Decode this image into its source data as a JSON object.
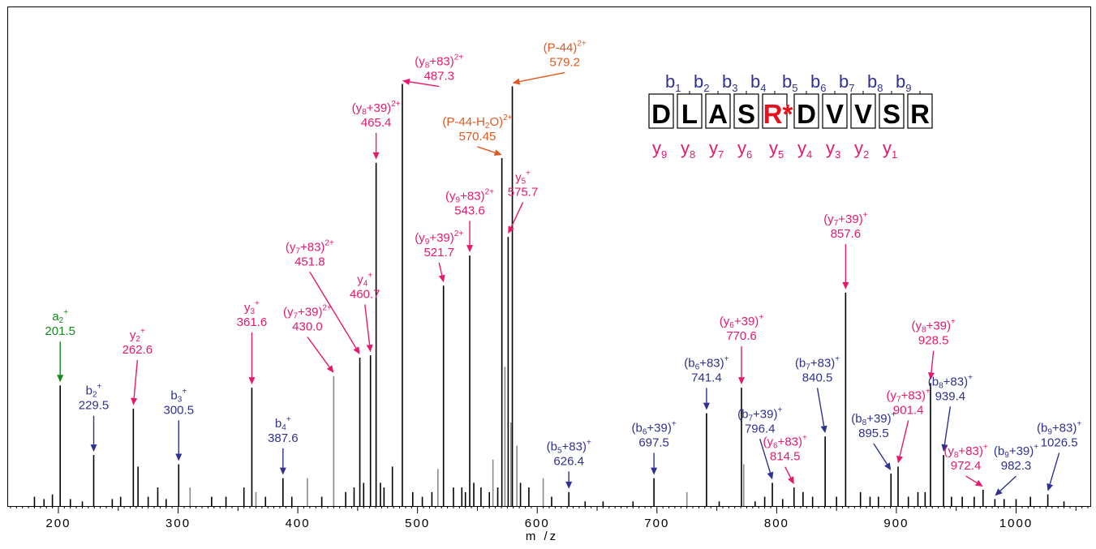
{
  "chart_data": {
    "type": "bar",
    "xlabel": "m /z",
    "xlim": [
      158,
      1062
    ],
    "x_ticks": [
      200,
      300,
      400,
      500,
      600,
      700,
      800,
      900,
      1000
    ],
    "ylim": [
      0,
      100
    ],
    "colors": {
      "y_ion": "#e8186d",
      "b_ion": "#2e3192",
      "a_ion": "#138a1a",
      "precursor": "#e2571d",
      "peak": "#000000",
      "peak_gray": "#8a8a8a"
    },
    "peaks": [
      {
        "x": 201.5,
        "y": 26
      },
      {
        "x": 229.5,
        "y": 11
      },
      {
        "x": 262.6,
        "y": 21
      },
      {
        "x": 266.5,
        "y": 8.5
      },
      {
        "x": 300.5,
        "y": 9
      },
      {
        "x": 361.6,
        "y": 25.5
      },
      {
        "x": 387.6,
        "y": 6
      },
      {
        "x": 430.0,
        "y": 28,
        "gray": true
      },
      {
        "x": 451.8,
        "y": 32
      },
      {
        "x": 460.7,
        "y": 32.5
      },
      {
        "x": 465.4,
        "y": 74
      },
      {
        "x": 479.0,
        "y": 8.5
      },
      {
        "x": 487.3,
        "y": 91
      },
      {
        "x": 521.7,
        "y": 47.5
      },
      {
        "x": 543.6,
        "y": 54
      },
      {
        "x": 570.45,
        "y": 75
      },
      {
        "x": 575.7,
        "y": 58
      },
      {
        "x": 578.0,
        "y": 18,
        "gray": true
      },
      {
        "x": 579.2,
        "y": 90.5
      },
      {
        "x": 626.4,
        "y": 3
      },
      {
        "x": 697.5,
        "y": 6
      },
      {
        "x": 741.4,
        "y": 20
      },
      {
        "x": 770.6,
        "y": 25.5
      },
      {
        "x": 772.5,
        "y": 9,
        "gray": true
      },
      {
        "x": 796.4,
        "y": 5
      },
      {
        "x": 814.5,
        "y": 4
      },
      {
        "x": 840.5,
        "y": 15
      },
      {
        "x": 857.6,
        "y": 46
      },
      {
        "x": 895.5,
        "y": 7
      },
      {
        "x": 901.4,
        "y": 8.5
      },
      {
        "x": 928.5,
        "y": 26.5
      },
      {
        "x": 939.4,
        "y": 11
      },
      {
        "x": 972.4,
        "y": 3.5
      },
      {
        "x": 982.3,
        "y": 1.5
      },
      {
        "x": 1026.5,
        "y": 2.5
      },
      {
        "x": 180,
        "y": 2
      },
      {
        "x": 188,
        "y": 1.5
      },
      {
        "x": 195,
        "y": 2.5
      },
      {
        "x": 210,
        "y": 1.5
      },
      {
        "x": 220,
        "y": 1
      },
      {
        "x": 245,
        "y": 1.5
      },
      {
        "x": 252,
        "y": 2
      },
      {
        "x": 275,
        "y": 2
      },
      {
        "x": 283,
        "y": 4
      },
      {
        "x": 290,
        "y": 1.5
      },
      {
        "x": 310,
        "y": 4,
        "gray": true
      },
      {
        "x": 328,
        "y": 2
      },
      {
        "x": 340,
        "y": 2
      },
      {
        "x": 355,
        "y": 4
      },
      {
        "x": 365,
        "y": 3,
        "gray": true
      },
      {
        "x": 373,
        "y": 2
      },
      {
        "x": 395,
        "y": 2
      },
      {
        "x": 408,
        "y": 6,
        "gray": true
      },
      {
        "x": 420,
        "y": 2
      },
      {
        "x": 440,
        "y": 3
      },
      {
        "x": 447,
        "y": 4
      },
      {
        "x": 455,
        "y": 5
      },
      {
        "x": 469,
        "y": 5
      },
      {
        "x": 472,
        "y": 4
      },
      {
        "x": 496,
        "y": 3
      },
      {
        "x": 504,
        "y": 2
      },
      {
        "x": 512,
        "y": 3
      },
      {
        "x": 517,
        "y": 8,
        "gray": true
      },
      {
        "x": 530,
        "y": 4
      },
      {
        "x": 537,
        "y": 4
      },
      {
        "x": 540,
        "y": 3
      },
      {
        "x": 547,
        "y": 5
      },
      {
        "x": 553,
        "y": 4
      },
      {
        "x": 560,
        "y": 3
      },
      {
        "x": 563,
        "y": 10,
        "gray": true
      },
      {
        "x": 567,
        "y": 4
      },
      {
        "x": 573,
        "y": 30,
        "gray": true
      },
      {
        "x": 583,
        "y": 13,
        "gray": true
      },
      {
        "x": 586,
        "y": 5
      },
      {
        "x": 593,
        "y": 4
      },
      {
        "x": 605,
        "y": 6,
        "gray": true
      },
      {
        "x": 612,
        "y": 2
      },
      {
        "x": 640,
        "y": 1
      },
      {
        "x": 655,
        "y": 1
      },
      {
        "x": 680,
        "y": 1
      },
      {
        "x": 725,
        "y": 3,
        "gray": true
      },
      {
        "x": 752,
        "y": 1
      },
      {
        "x": 782,
        "y": 1
      },
      {
        "x": 790,
        "y": 2
      },
      {
        "x": 805,
        "y": 1.5
      },
      {
        "x": 822,
        "y": 3
      },
      {
        "x": 830,
        "y": 2
      },
      {
        "x": 850,
        "y": 2
      },
      {
        "x": 870,
        "y": 3
      },
      {
        "x": 878,
        "y": 2
      },
      {
        "x": 885,
        "y": 2
      },
      {
        "x": 910,
        "y": 2
      },
      {
        "x": 918,
        "y": 3
      },
      {
        "x": 924,
        "y": 3
      },
      {
        "x": 946,
        "y": 2
      },
      {
        "x": 955,
        "y": 2
      },
      {
        "x": 965,
        "y": 2
      },
      {
        "x": 990,
        "y": 1.5
      },
      {
        "x": 1000,
        "y": 1.5
      },
      {
        "x": 1012,
        "y": 2
      },
      {
        "x": 1040,
        "y": 1
      }
    ],
    "annotations": [
      {
        "ion": "a",
        "sub": "2",
        "sup": "+",
        "suffix": "",
        "mass": "201.5",
        "x": 201.5,
        "y": 26,
        "color": "a_ion",
        "lx": 201.5,
        "ly": 40
      },
      {
        "ion": "b",
        "sub": "2",
        "sup": "+",
        "suffix": "",
        "mass": "229.5",
        "x": 229.5,
        "y": 11,
        "color": "b_ion",
        "lx": 229.5,
        "ly": 24
      },
      {
        "ion": "y",
        "sub": "2",
        "sup": "+",
        "suffix": "",
        "mass": "262.6",
        "x": 262.6,
        "y": 21,
        "color": "y_ion",
        "lx": 266,
        "ly": 36
      },
      {
        "ion": "b",
        "sub": "3",
        "sup": "+",
        "suffix": "",
        "mass": "300.5",
        "x": 300.5,
        "y": 9,
        "color": "b_ion",
        "lx": 300.5,
        "ly": 23
      },
      {
        "ion": "y",
        "sub": "3",
        "sup": "+",
        "suffix": "",
        "mass": "361.6",
        "x": 361.6,
        "y": 25.5,
        "color": "y_ion",
        "lx": 361.6,
        "ly": 42
      },
      {
        "ion": "b",
        "sub": "4",
        "sup": "+",
        "suffix": "",
        "mass": "387.6",
        "x": 387.6,
        "y": 6,
        "color": "b_ion",
        "lx": 387.6,
        "ly": 17
      },
      {
        "ion": "(y",
        "sub": "7",
        "sup": "2+",
        "suffix": "+39)",
        "mass": "430.0",
        "x": 430.0,
        "y": 28,
        "color": "y_ion",
        "lx": 408,
        "ly": 41
      },
      {
        "ion": "(y",
        "sub": "7",
        "sup": "2+",
        "suffix": "+83)",
        "mass": "451.8",
        "x": 451.8,
        "y": 32,
        "color": "y_ion",
        "lx": 410,
        "ly": 55
      },
      {
        "ion": "y",
        "sub": "4",
        "sup": "+",
        "suffix": "",
        "mass": "460.7",
        "x": 460.7,
        "y": 32.5,
        "color": "y_ion",
        "lx": 456,
        "ly": 48
      },
      {
        "ion": "(y",
        "sub": "8",
        "sup": "2+",
        "suffix": "+39)",
        "mass": "465.4",
        "x": 465.4,
        "y": 74,
        "color": "y_ion",
        "lx": 465.4,
        "ly": 85
      },
      {
        "ion": "(y",
        "sub": "8",
        "sup": "2+",
        "suffix": "+83)",
        "mass": "487.3",
        "x": 487.3,
        "y": 91,
        "color": "y_ion",
        "lx": 518,
        "ly": 95
      },
      {
        "ion": "(y",
        "sub": "9",
        "sup": "2+",
        "suffix": "+39)",
        "mass": "521.7",
        "x": 521.7,
        "y": 47.5,
        "color": "y_ion",
        "lx": 518,
        "ly": 57
      },
      {
        "ion": "(y",
        "sub": "9",
        "sup": "2+",
        "suffix": "+83)",
        "mass": "543.6",
        "x": 543.6,
        "y": 54,
        "color": "y_ion",
        "lx": 543.6,
        "ly": 66
      },
      {
        "ion": "(P-44-H",
        "sub": "2",
        "sup": "2+",
        "suffix": "O)",
        "mass": "570.45",
        "x": 570.45,
        "y": 75,
        "color": "precursor",
        "lx": 550,
        "ly": 82
      },
      {
        "ion": "y",
        "sub": "5",
        "sup": "+",
        "suffix": "",
        "mass": "575.7",
        "x": 575.7,
        "y": 58,
        "color": "y_ion",
        "lx": 588,
        "ly": 70
      },
      {
        "ion": "(P-44)",
        "sub": "",
        "sup": "2+",
        "suffix": "",
        "mass": "579.2",
        "x": 579.2,
        "y": 90.5,
        "color": "precursor",
        "lx": 623,
        "ly": 98
      },
      {
        "ion": "(b",
        "sub": "5",
        "sup": "+",
        "suffix": "+83)",
        "mass": "626.4",
        "x": 626.4,
        "y": 3,
        "color": "b_ion",
        "lx": 626.4,
        "ly": 12
      },
      {
        "ion": "(b",
        "sub": "6",
        "sup": "+",
        "suffix": "+39)",
        "mass": "697.5",
        "x": 697.5,
        "y": 6,
        "color": "b_ion",
        "lx": 697.5,
        "ly": 16
      },
      {
        "ion": "(b",
        "sub": "6",
        "sup": "+",
        "suffix": "+83)",
        "mass": "741.4",
        "x": 741.4,
        "y": 20,
        "color": "b_ion",
        "lx": 741.4,
        "ly": 30
      },
      {
        "ion": "(y",
        "sub": "6",
        "sup": "+",
        "suffix": "+39)",
        "mass": "770.6",
        "x": 770.6,
        "y": 25.5,
        "color": "y_ion",
        "lx": 770.6,
        "ly": 39
      },
      {
        "ion": "(b",
        "sub": "7",
        "sup": "+",
        "suffix": "+39)",
        "mass": "796.4",
        "x": 796.4,
        "y": 5,
        "color": "b_ion",
        "lx": 786,
        "ly": 19
      },
      {
        "ion": "(y",
        "sub": "6",
        "sup": "+",
        "suffix": "+83)",
        "mass": "814.5",
        "x": 814.5,
        "y": 4,
        "color": "y_ion",
        "lx": 807,
        "ly": 13
      },
      {
        "ion": "(b",
        "sub": "7",
        "sup": "+",
        "suffix": "+83)",
        "mass": "840.5",
        "x": 840.5,
        "y": 15,
        "color": "b_ion",
        "lx": 834,
        "ly": 30
      },
      {
        "ion": "(y",
        "sub": "7",
        "sup": "+",
        "suffix": "+39)",
        "mass": "857.6",
        "x": 857.6,
        "y": 46,
        "color": "y_ion",
        "lx": 857.6,
        "ly": 61
      },
      {
        "ion": "(b",
        "sub": "8",
        "sup": "+",
        "suffix": "+39)",
        "mass": "895.5",
        "x": 895.5,
        "y": 7,
        "color": "b_ion",
        "lx": 881,
        "ly": 18
      },
      {
        "ion": "(y",
        "sub": "7",
        "sup": "+",
        "suffix": "+83)",
        "mass": "901.4",
        "x": 901.4,
        "y": 8.5,
        "color": "y_ion",
        "lx": 910,
        "ly": 23
      },
      {
        "ion": "(y",
        "sub": "8",
        "sup": "+",
        "suffix": "+39)",
        "mass": "928.5",
        "x": 928.5,
        "y": 26.5,
        "color": "y_ion",
        "lx": 931,
        "ly": 38
      },
      {
        "ion": "(b",
        "sub": "8",
        "sup": "+",
        "suffix": "+83)",
        "mass": "939.4",
        "x": 939.4,
        "y": 11,
        "color": "b_ion",
        "lx": 945,
        "ly": 26
      },
      {
        "ion": "(y",
        "sub": "8",
        "sup": "+",
        "suffix": "+83)",
        "mass": "972.4",
        "x": 972.4,
        "y": 3.5,
        "color": "y_ion",
        "lx": 958,
        "ly": 11
      },
      {
        "ion": "(b",
        "sub": "9",
        "sup": "+",
        "suffix": "+39)",
        "mass": "982.3",
        "x": 982.3,
        "y": 1.5,
        "color": "b_ion",
        "lx": 1000,
        "ly": 11
      },
      {
        "ion": "(b",
        "sub": "9",
        "sup": "+",
        "suffix": "+83)",
        "mass": "1026.5",
        "x": 1026.5,
        "y": 2.5,
        "color": "b_ion",
        "lx": 1036,
        "ly": 16
      }
    ],
    "sequence": {
      "letters": [
        "D",
        "L",
        "A",
        "S",
        "R*",
        "D",
        "V",
        "V",
        "S",
        "R"
      ],
      "modified_index": 4,
      "modified_color": "#e8101a",
      "b_ions": [
        "1",
        "2",
        "3",
        "4",
        "5",
        "6",
        "7",
        "8",
        "9"
      ],
      "y_ions": [
        "9",
        "8",
        "7",
        "6",
        "5",
        "4",
        "3",
        "2",
        "1"
      ]
    }
  }
}
